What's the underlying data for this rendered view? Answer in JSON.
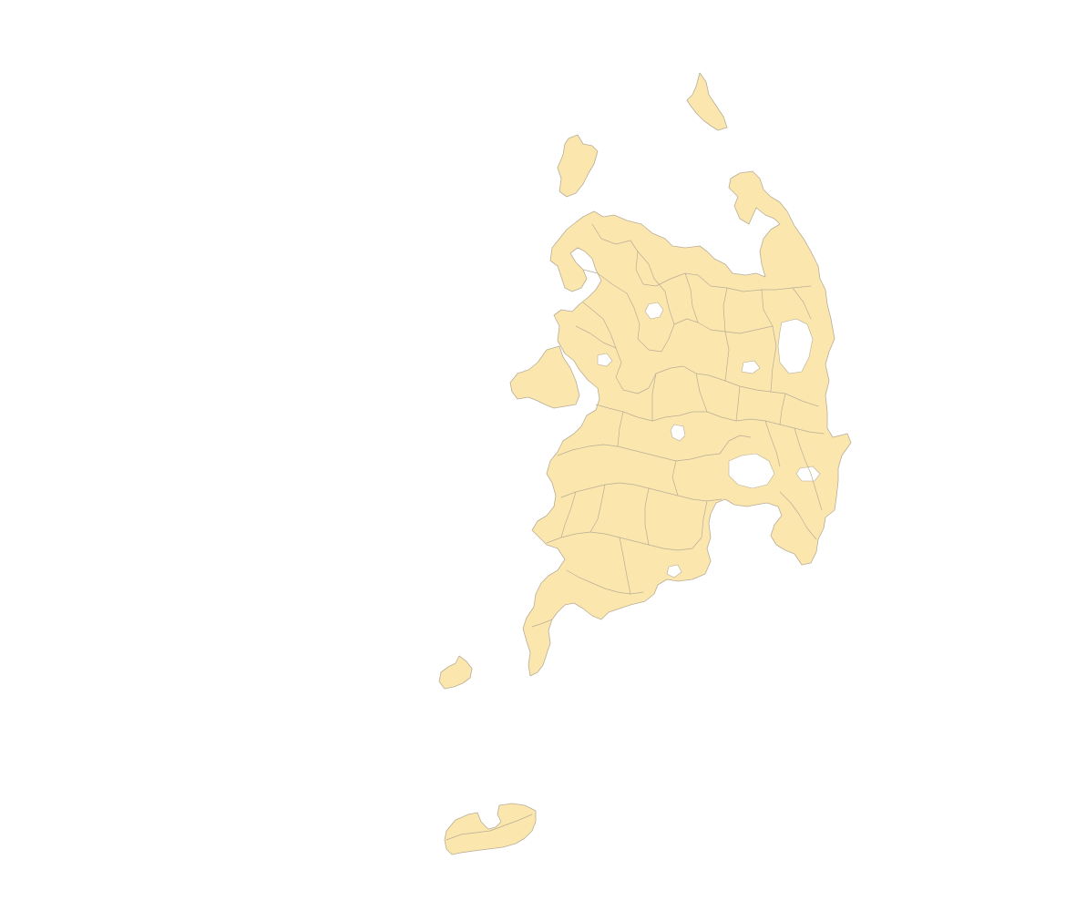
{
  "map": {
    "fill_color": "#fbe7ae",
    "border_color": "#b9ad96",
    "background_color": "#ffffff"
  }
}
